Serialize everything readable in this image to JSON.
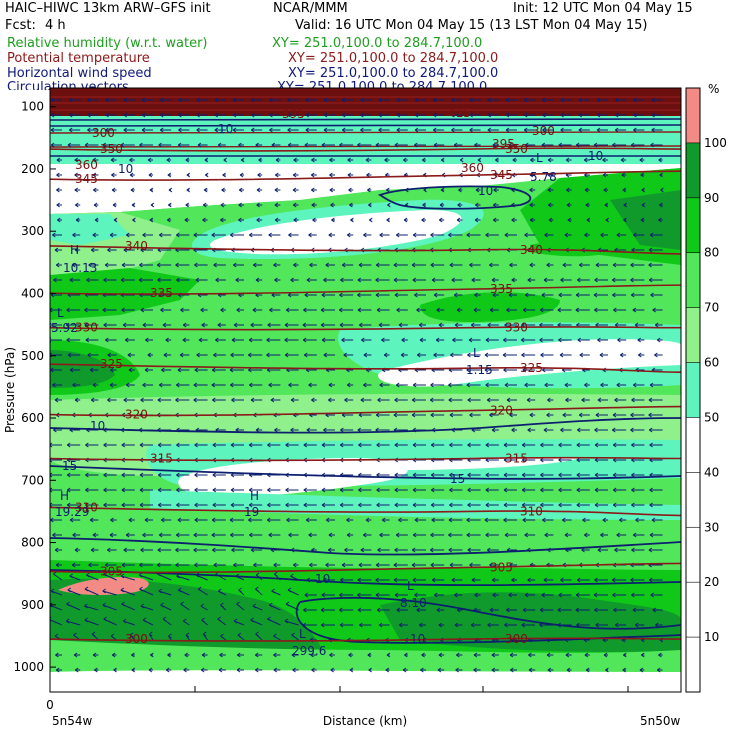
{
  "header": {
    "model": "HAIC–HIWC 13km ARW–GFS init",
    "org": "NCAR/MMM",
    "init": "Init: 12 UTC Mon 04 May 15",
    "fcst_label": "Fcst:",
    "fcst_value": "4 h",
    "valid": "Valid: 16 UTC Mon 04 May 15 (13 LST Mon 04 May 15)",
    "fields": [
      {
        "name": "Relative humidity (w.r.t. water)",
        "xy": "XY= 251.0,100.0 to 284.7,100.0",
        "color": "#1e9e1e"
      },
      {
        "name": "Potential temperature",
        "xy": "XY= 251.0,100.0 to 284.7,100.0",
        "color": "#8b1a1a"
      },
      {
        "name": "Horizontal wind speed",
        "xy": "XY= 251.0,100.0 to 284.7,100.0",
        "color": "#101a7a"
      },
      {
        "name": "Circulation vectors",
        "xy": "XY= 251.0,100.0 to 284.7,100.0",
        "color": "#101a7a"
      }
    ]
  },
  "chart_data": {
    "type": "heatmap",
    "description_of_fields": [
      "Relative humidity (w.r.t. water)",
      "Potential temperature",
      "Horizontal wind speed",
      "Circulation vectors"
    ],
    "ylabel": "Pressure (hPa)",
    "xlabel": "Distance (km)",
    "y_ticks": [
      100,
      200,
      300,
      400,
      500,
      600,
      700,
      800,
      900,
      1000
    ],
    "ylim": [
      1040,
      70
    ],
    "x_start_label": "0",
    "x_left_endpoint": "5n54w",
    "x_right_endpoint": "5n50w",
    "colorbar": {
      "unit": "%",
      "ticks": [
        10,
        20,
        30,
        40,
        50,
        60,
        70,
        80,
        90,
        100
      ],
      "bins": [
        {
          "from": 0,
          "to": 50,
          "color": "#ffffff"
        },
        {
          "from": 50,
          "to": 60,
          "color": "#5df5bd"
        },
        {
          "from": 60,
          "to": 70,
          "color": "#8ff08c"
        },
        {
          "from": 70,
          "to": 80,
          "color": "#52e65a"
        },
        {
          "from": 80,
          "to": 90,
          "color": "#10c818"
        },
        {
          "from": 90,
          "to": 100,
          "color": "#109a2c"
        },
        {
          "from": 100,
          "to": 110,
          "color": "#f28a85"
        }
      ],
      "range": [
        0,
        110
      ]
    },
    "theta_contours": [
      {
        "level": 345,
        "p": 210
      },
      {
        "level": 350,
        "p": 168
      },
      {
        "level": 340,
        "p": 330
      },
      {
        "level": 335,
        "p": 393
      },
      {
        "level": 330,
        "p": 455
      },
      {
        "level": 325,
        "p": 520
      },
      {
        "level": 320,
        "p": 588
      },
      {
        "level": 315,
        "p": 665
      },
      {
        "level": 310,
        "p": 750
      },
      {
        "level": 305,
        "p": 840
      },
      {
        "level": 300,
        "p": 955
      }
    ],
    "wind_speed_labels": [
      "10",
      "10",
      "10",
      "10",
      "15",
      "15",
      "10",
      "10",
      "10"
    ],
    "extrema": [
      {
        "kind": "L",
        "value": "5.78"
      },
      {
        "kind": "H",
        "value": "10.13"
      },
      {
        "kind": "L",
        "value": "5.92"
      },
      {
        "kind": "L",
        "value": "1.15"
      },
      {
        "kind": "H",
        "value": "19.29"
      },
      {
        "kind": "H",
        "value": "19"
      },
      {
        "kind": "L",
        "value": "8.10"
      },
      {
        "kind": "L",
        "value": "299.6"
      }
    ],
    "theta_upper_labels": [
      "300",
      "395",
      "360",
      "415",
      "395",
      "360",
      "300"
    ]
  }
}
